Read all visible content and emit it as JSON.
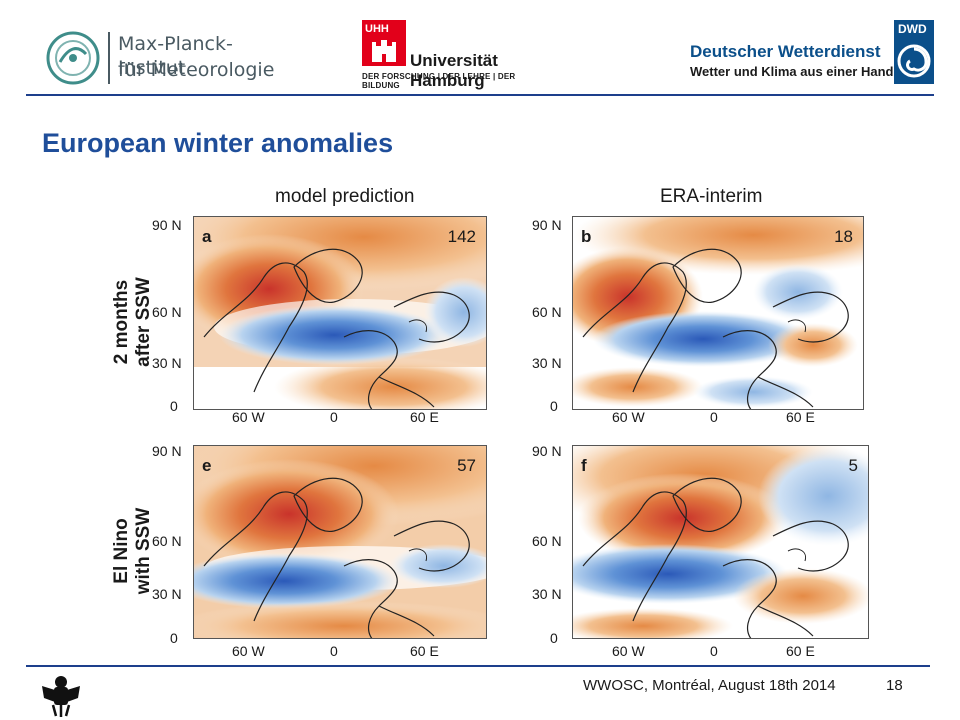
{
  "header": {
    "mpi": {
      "line1": "Max-Planck-Institut",
      "line2": "für Meteorologie"
    },
    "uhh": {
      "badge": "UHH",
      "name": "Universität Hamburg",
      "tagline": "DER FORSCHUNG | DER LEHRE | DER BILDUNG"
    },
    "dwd": {
      "name": "Deutscher Wetterdienst",
      "tagline": "Wetter und Klima aus einer Hand",
      "badge": "DWD"
    }
  },
  "title": "European winter anomalies",
  "figure": {
    "columns": [
      "model prediction",
      "ERA-interim"
    ],
    "rows": [
      {
        "line1": "2 months",
        "line2": "after SSW"
      },
      {
        "line1": "El Nino",
        "line2": "with SSW"
      }
    ],
    "y_ticks": [
      "90 N",
      "60 N",
      "30 N",
      "0"
    ],
    "x_ticks": [
      "60 W",
      "0",
      "60 E"
    ],
    "panels": [
      {
        "letter": "a",
        "count": "142"
      },
      {
        "letter": "b",
        "count": "18"
      },
      {
        "letter": "e",
        "count": "57"
      },
      {
        "letter": "f",
        "count": "5"
      }
    ]
  },
  "footer": {
    "text": "WWOSC, Montréal, August 18th 2014",
    "page": "18"
  },
  "colors": {
    "accent": "#1f4e9a",
    "rule": "#1d3f8c",
    "uhh_red": "#e2001a",
    "dwd_blue": "#0b4f8a"
  }
}
